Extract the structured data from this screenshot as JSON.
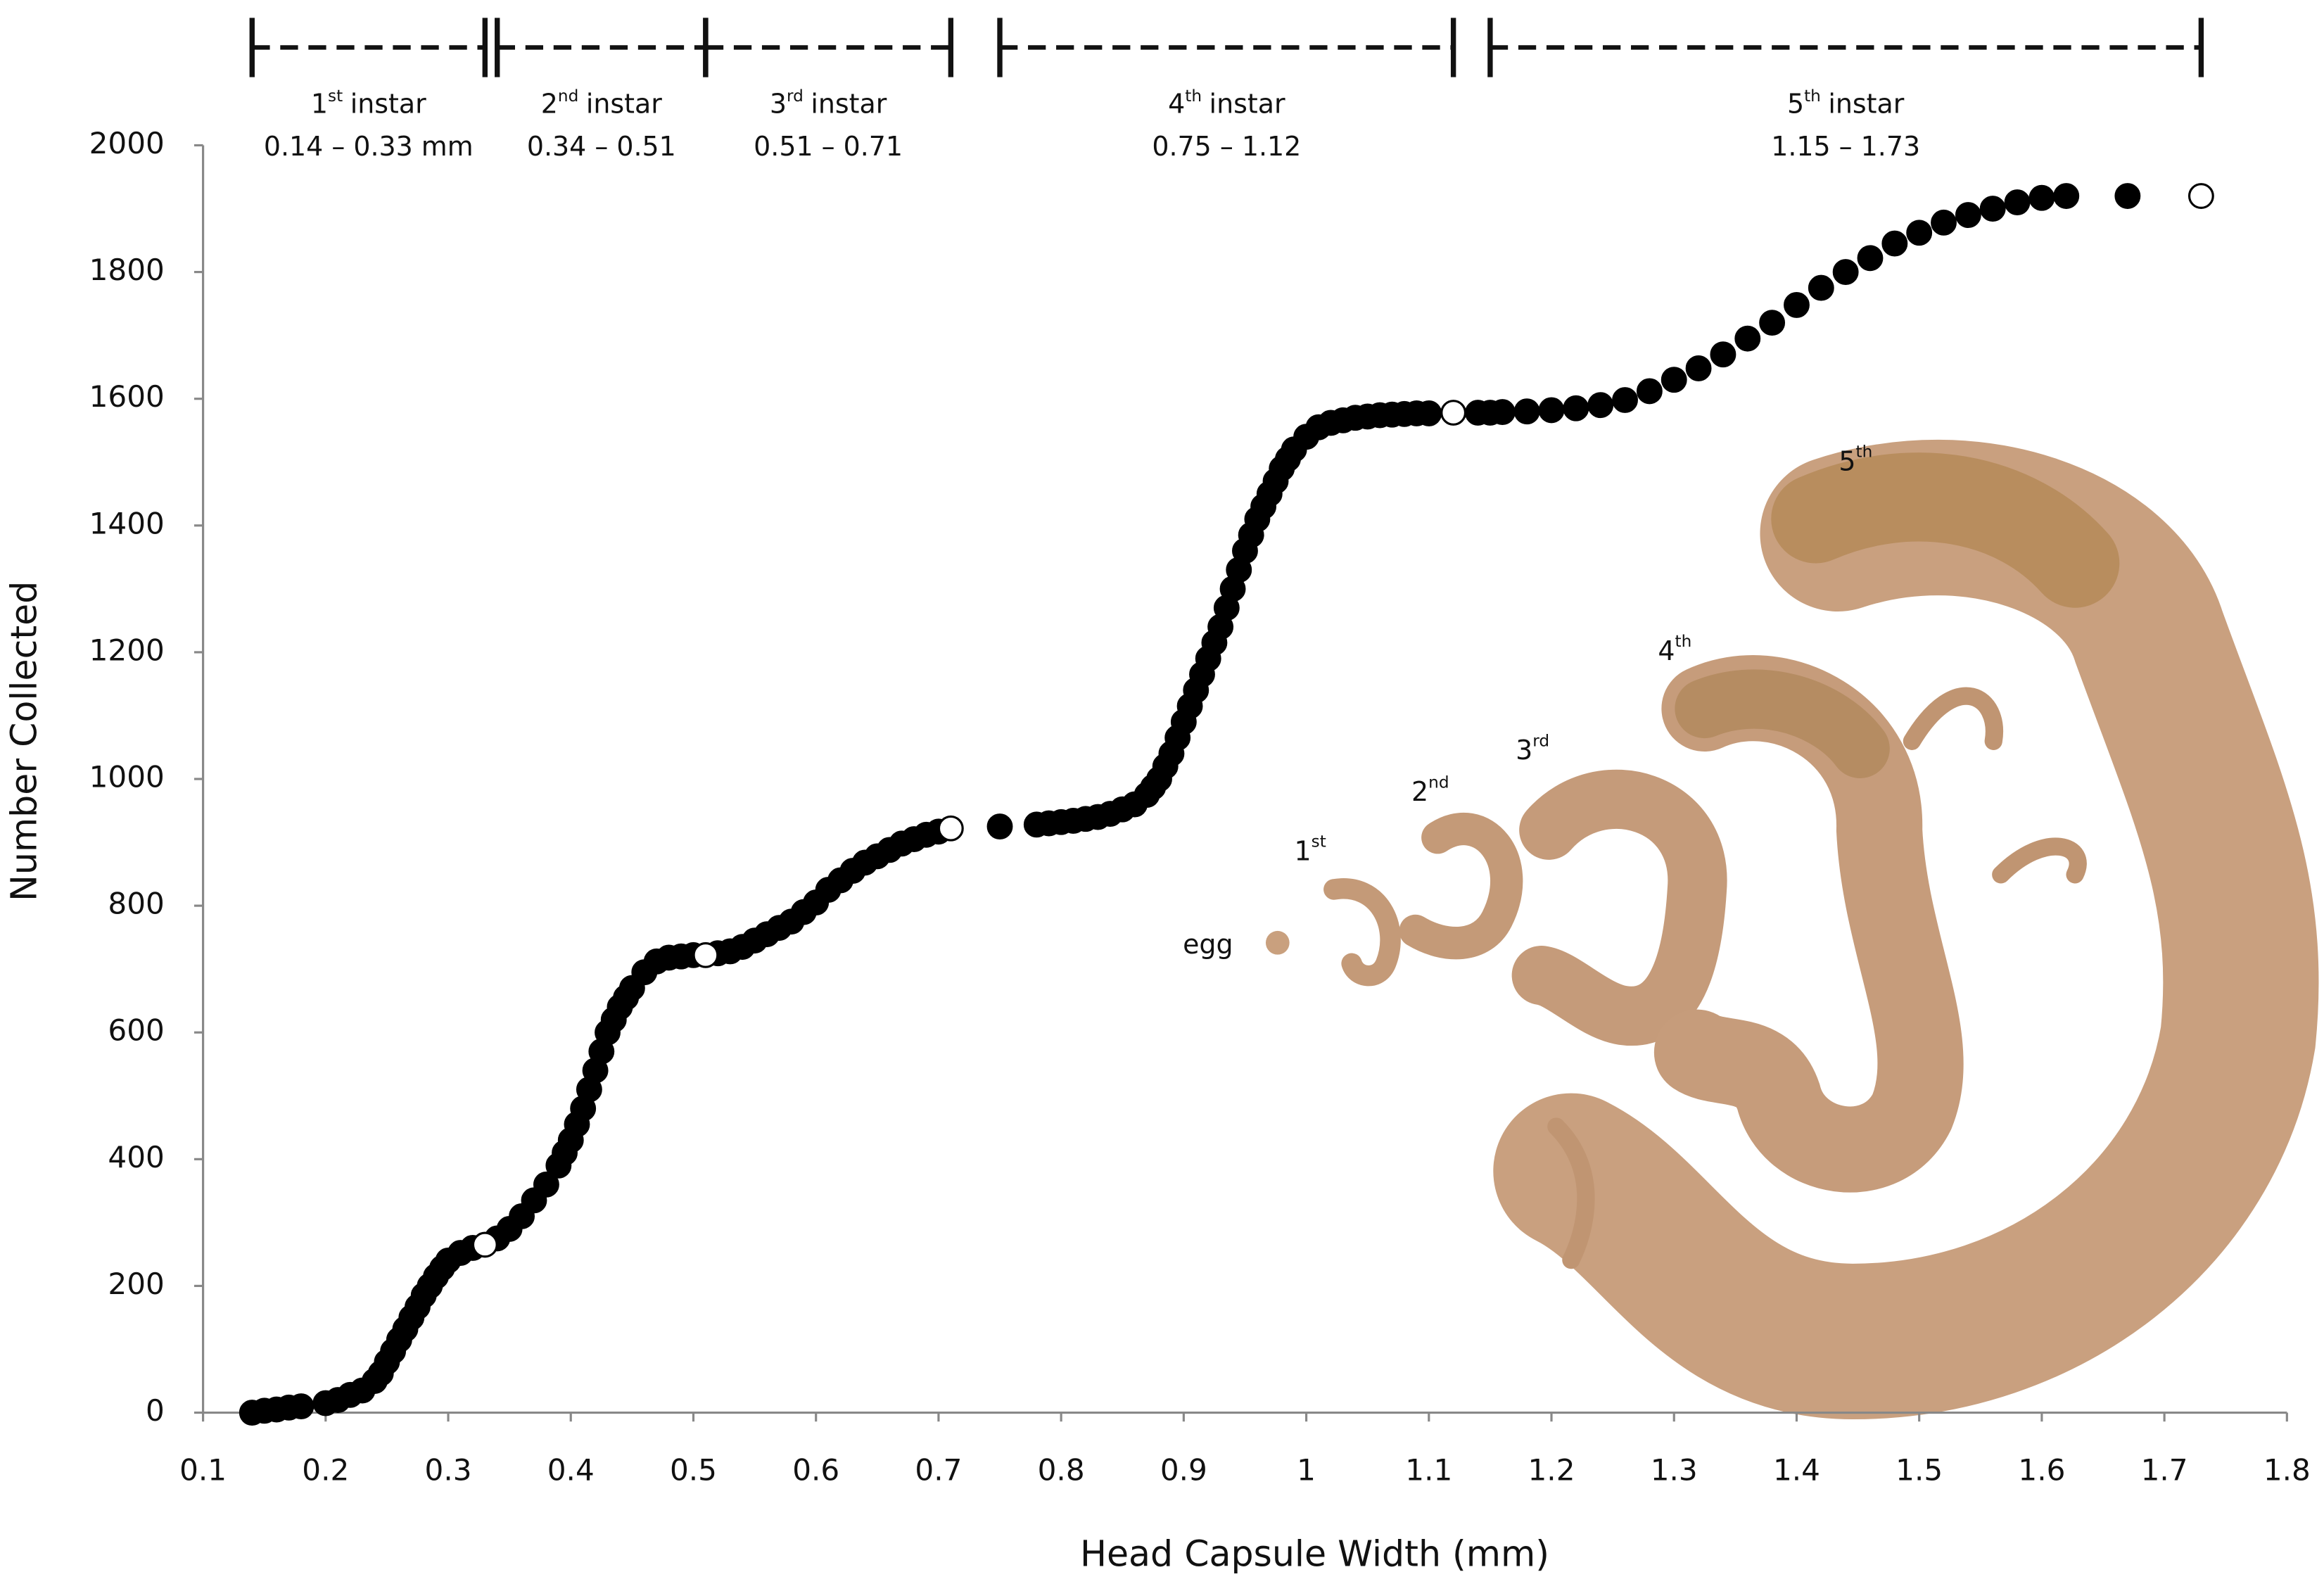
{
  "chart_data": {
    "type": "scatter",
    "x_label": "Head Capsule Width (mm)",
    "y_label": "Number Collected",
    "xlim": [
      0.1,
      1.8
    ],
    "xticks": [
      0.1,
      0.2,
      0.3,
      0.4,
      0.5,
      0.6,
      0.7,
      0.8,
      0.9,
      1,
      1.1,
      1.2,
      1.3,
      1.4,
      1.5,
      1.6,
      1.7,
      1.8
    ],
    "ylim": [
      0,
      2000
    ],
    "yticks": [
      0,
      200,
      400,
      600,
      800,
      1000,
      1200,
      1400,
      1600,
      1800,
      2000
    ],
    "grid": false,
    "series": [
      {
        "color": "#000000",
        "x": [
          0.14,
          0.15,
          0.16,
          0.17,
          0.18,
          0.2,
          0.21,
          0.22,
          0.23,
          0.24,
          0.245,
          0.25,
          0.255,
          0.26,
          0.265,
          0.27,
          0.275,
          0.28,
          0.285,
          0.29,
          0.295,
          0.3,
          0.31,
          0.32,
          0.34,
          0.35,
          0.36,
          0.37,
          0.38,
          0.39,
          0.395,
          0.4,
          0.405,
          0.41,
          0.415,
          0.42,
          0.425,
          0.43,
          0.435,
          0.44,
          0.445,
          0.45,
          0.46,
          0.47,
          0.48,
          0.49,
          0.5,
          0.52,
          0.53,
          0.54,
          0.55,
          0.56,
          0.57,
          0.58,
          0.59,
          0.6,
          0.61,
          0.62,
          0.63,
          0.64,
          0.65,
          0.66,
          0.67,
          0.68,
          0.69,
          0.7,
          0.75,
          0.78,
          0.79,
          0.8,
          0.81,
          0.82,
          0.83,
          0.84,
          0.85,
          0.86,
          0.87,
          0.875,
          0.88,
          0.885,
          0.89,
          0.895,
          0.9,
          0.905,
          0.91,
          0.915,
          0.92,
          0.925,
          0.93,
          0.935,
          0.94,
          0.945,
          0.95,
          0.955,
          0.96,
          0.965,
          0.97,
          0.975,
          0.98,
          0.985,
          0.99,
          1.0,
          1.01,
          1.02,
          1.03,
          1.04,
          1.05,
          1.06,
          1.07,
          1.08,
          1.09,
          1.1,
          1.14,
          1.15,
          1.16,
          1.18,
          1.2,
          1.22,
          1.24,
          1.26,
          1.28,
          1.3,
          1.32,
          1.34,
          1.36,
          1.38,
          1.4,
          1.42,
          1.44,
          1.46,
          1.48,
          1.5,
          1.52,
          1.54,
          1.56,
          1.58,
          1.6,
          1.62,
          1.67
        ],
        "values": [
          0,
          3,
          5,
          8,
          10,
          15,
          20,
          28,
          35,
          50,
          62,
          80,
          97,
          115,
          132,
          150,
          167,
          185,
          200,
          215,
          228,
          240,
          252,
          260,
          275,
          290,
          310,
          335,
          360,
          390,
          410,
          430,
          455,
          480,
          510,
          540,
          570,
          600,
          620,
          640,
          655,
          670,
          695,
          712,
          718,
          720,
          722,
          725,
          728,
          735,
          745,
          755,
          765,
          775,
          790,
          805,
          825,
          840,
          855,
          868,
          878,
          888,
          898,
          905,
          912,
          917,
          925,
          928,
          930,
          932,
          934,
          937,
          940,
          945,
          952,
          960,
          975,
          987,
          1000,
          1020,
          1040,
          1065,
          1090,
          1115,
          1140,
          1165,
          1190,
          1215,
          1240,
          1270,
          1300,
          1330,
          1360,
          1385,
          1410,
          1430,
          1450,
          1470,
          1490,
          1505,
          1520,
          1540,
          1555,
          1562,
          1566,
          1570,
          1572,
          1574,
          1575,
          1576,
          1577,
          1577,
          1578,
          1578,
          1579,
          1580,
          1582,
          1585,
          1590,
          1598,
          1612,
          1630,
          1648,
          1670,
          1695,
          1720,
          1748,
          1775,
          1800,
          1822,
          1845,
          1862,
          1878,
          1890,
          1900,
          1910,
          1917,
          1920,
          1920
        ]
      },
      {
        "color": "#ffffff",
        "x": [
          0.33,
          0.51,
          0.71,
          1.12,
          1.73
        ],
        "values": [
          265,
          722,
          922,
          1578,
          1920
        ]
      }
    ],
    "instars": [
      {
        "num": "1",
        "sup": "st",
        "name": "instar",
        "from": 0.14,
        "to": 0.33,
        "range": "0.14 – 0.33 mm"
      },
      {
        "num": "2",
        "sup": "nd",
        "name": "instar",
        "from": 0.34,
        "to": 0.51,
        "range": "0.34 – 0.51"
      },
      {
        "num": "3",
        "sup": "rd",
        "name": "instar",
        "from": 0.51,
        "to": 0.71,
        "range": "0.51 – 0.71"
      },
      {
        "num": "4",
        "sup": "th",
        "name": "instar",
        "from": 0.75,
        "to": 1.12,
        "range": "0.75 – 1.12"
      },
      {
        "num": "5",
        "sup": "th",
        "name": "instar",
        "from": 1.15,
        "to": 1.73,
        "range": "1.15 – 1.73"
      }
    ],
    "illustration_labels": [
      {
        "text": "egg"
      },
      {
        "text": "1",
        "sup": "st"
      },
      {
        "text": "2",
        "sup": "nd"
      },
      {
        "text": "3",
        "sup": "rd"
      },
      {
        "text": "4",
        "sup": "th"
      },
      {
        "text": "5",
        "sup": "th"
      }
    ]
  }
}
